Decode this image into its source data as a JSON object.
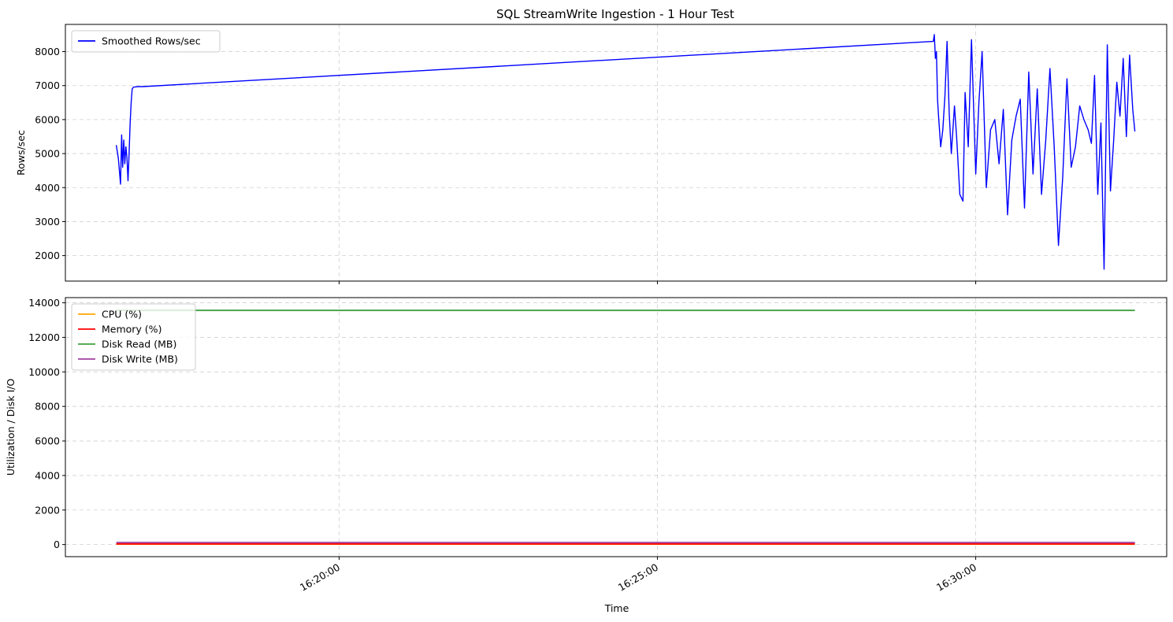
{
  "chart_data": [
    {
      "type": "line",
      "title": "SQL StreamWrite Ingestion - 1 Hour Test",
      "xlabel": "",
      "ylabel": "Rows/sec",
      "ylim": [
        1250,
        8800
      ],
      "yticks": [
        2000,
        3000,
        4000,
        5000,
        6000,
        7000,
        8000
      ],
      "xlim": [
        "16:15:42",
        "16:33:00"
      ],
      "xticks": [
        "16:20:00",
        "16:25:00",
        "16:30:00"
      ],
      "grid": true,
      "legend": "top-left",
      "series": [
        {
          "name": "Smoothed Rows/sec",
          "color": "#0000ff",
          "x": [
            "16:16:30",
            "16:16:32",
            "16:16:34",
            "16:16:35",
            "16:16:36",
            "16:16:37",
            "16:16:38",
            "16:16:39",
            "16:16:40",
            "16:16:41",
            "16:16:42",
            "16:16:43",
            "16:16:44",
            "16:16:45",
            "16:16:46",
            "16:16:47",
            "16:16:48",
            "16:16:50",
            "16:16:51",
            "16:16:53",
            "16:16:55",
            "16:29:20",
            "16:29:21",
            "16:29:22",
            "16:29:23",
            "16:29:24",
            "16:29:25",
            "16:29:27",
            "16:29:29",
            "16:29:31",
            "16:29:33",
            "16:29:35",
            "16:29:37",
            "16:29:40",
            "16:29:42",
            "16:29:45",
            "16:29:48",
            "16:29:50",
            "16:29:53",
            "16:29:56",
            "16:30:00",
            "16:30:03",
            "16:30:06",
            "16:30:10",
            "16:30:14",
            "16:30:18",
            "16:30:22",
            "16:30:26",
            "16:30:30",
            "16:30:34",
            "16:30:38",
            "16:30:42",
            "16:30:46",
            "16:30:50",
            "16:30:54",
            "16:30:58",
            "16:31:02",
            "16:31:06",
            "16:31:10",
            "16:31:14",
            "16:31:18",
            "16:31:22",
            "16:31:26",
            "16:31:30",
            "16:31:34",
            "16:31:38",
            "16:31:42",
            "16:31:46",
            "16:31:49",
            "16:31:52",
            "16:31:55",
            "16:31:58",
            "16:32:01",
            "16:32:04",
            "16:32:07",
            "16:32:10",
            "16:32:13",
            "16:32:16",
            "16:32:19",
            "16:32:22",
            "16:32:25",
            "16:32:28",
            "16:32:30"
          ],
          "values": [
            5250,
            4850,
            4100,
            5550,
            4600,
            5400,
            4700,
            5200,
            4900,
            4200,
            4950,
            5900,
            6500,
            6900,
            6950,
            6960,
            6960,
            6970,
            6970,
            6970,
            6970,
            8300,
            8500,
            7800,
            8000,
            6600,
            6100,
            5200,
            5700,
            6700,
            8300,
            6200,
            5000,
            6400,
            5500,
            3800,
            3600,
            6800,
            5200,
            8350,
            4400,
            6500,
            8000,
            4000,
            5700,
            6000,
            4700,
            6300,
            3200,
            5400,
            6100,
            6600,
            3400,
            7400,
            4400,
            6900,
            3800,
            5400,
            7500,
            5200,
            2300,
            4300,
            7200,
            4600,
            5200,
            6400,
            6000,
            5700,
            5300,
            7300,
            3800,
            5900,
            1600,
            8200,
            3900,
            5400,
            7100,
            6100,
            7800,
            5500,
            7900,
            6300,
            5650
          ]
        }
      ]
    },
    {
      "type": "line",
      "xlabel": "Time",
      "ylabel": "Utilization / Disk I/O",
      "ylim": [
        -700,
        14300
      ],
      "yticks": [
        0,
        2000,
        4000,
        6000,
        8000,
        10000,
        12000,
        14000
      ],
      "xlim": [
        "16:15:42",
        "16:33:00"
      ],
      "xticks": [
        "16:20:00",
        "16:25:00",
        "16:30:00"
      ],
      "grid": true,
      "legend": "top-left",
      "series": [
        {
          "name": "CPU (%)",
          "color": "#ffa500",
          "x": [
            "16:16:30",
            "16:32:30"
          ],
          "values": [
            20,
            20
          ]
        },
        {
          "name": "Memory (%)",
          "color": "#ff0000",
          "x": [
            "16:16:30",
            "16:32:30"
          ],
          "values": [
            40,
            40
          ]
        },
        {
          "name": "Disk Read (MB)",
          "color": "#3fa03f",
          "x": [
            "16:16:30",
            "16:32:30"
          ],
          "values": [
            13560,
            13560
          ]
        },
        {
          "name": "Disk Write (MB)",
          "color": "#a040a0",
          "x": [
            "16:16:30",
            "16:32:30"
          ],
          "values": [
            120,
            120
          ]
        }
      ]
    }
  ]
}
